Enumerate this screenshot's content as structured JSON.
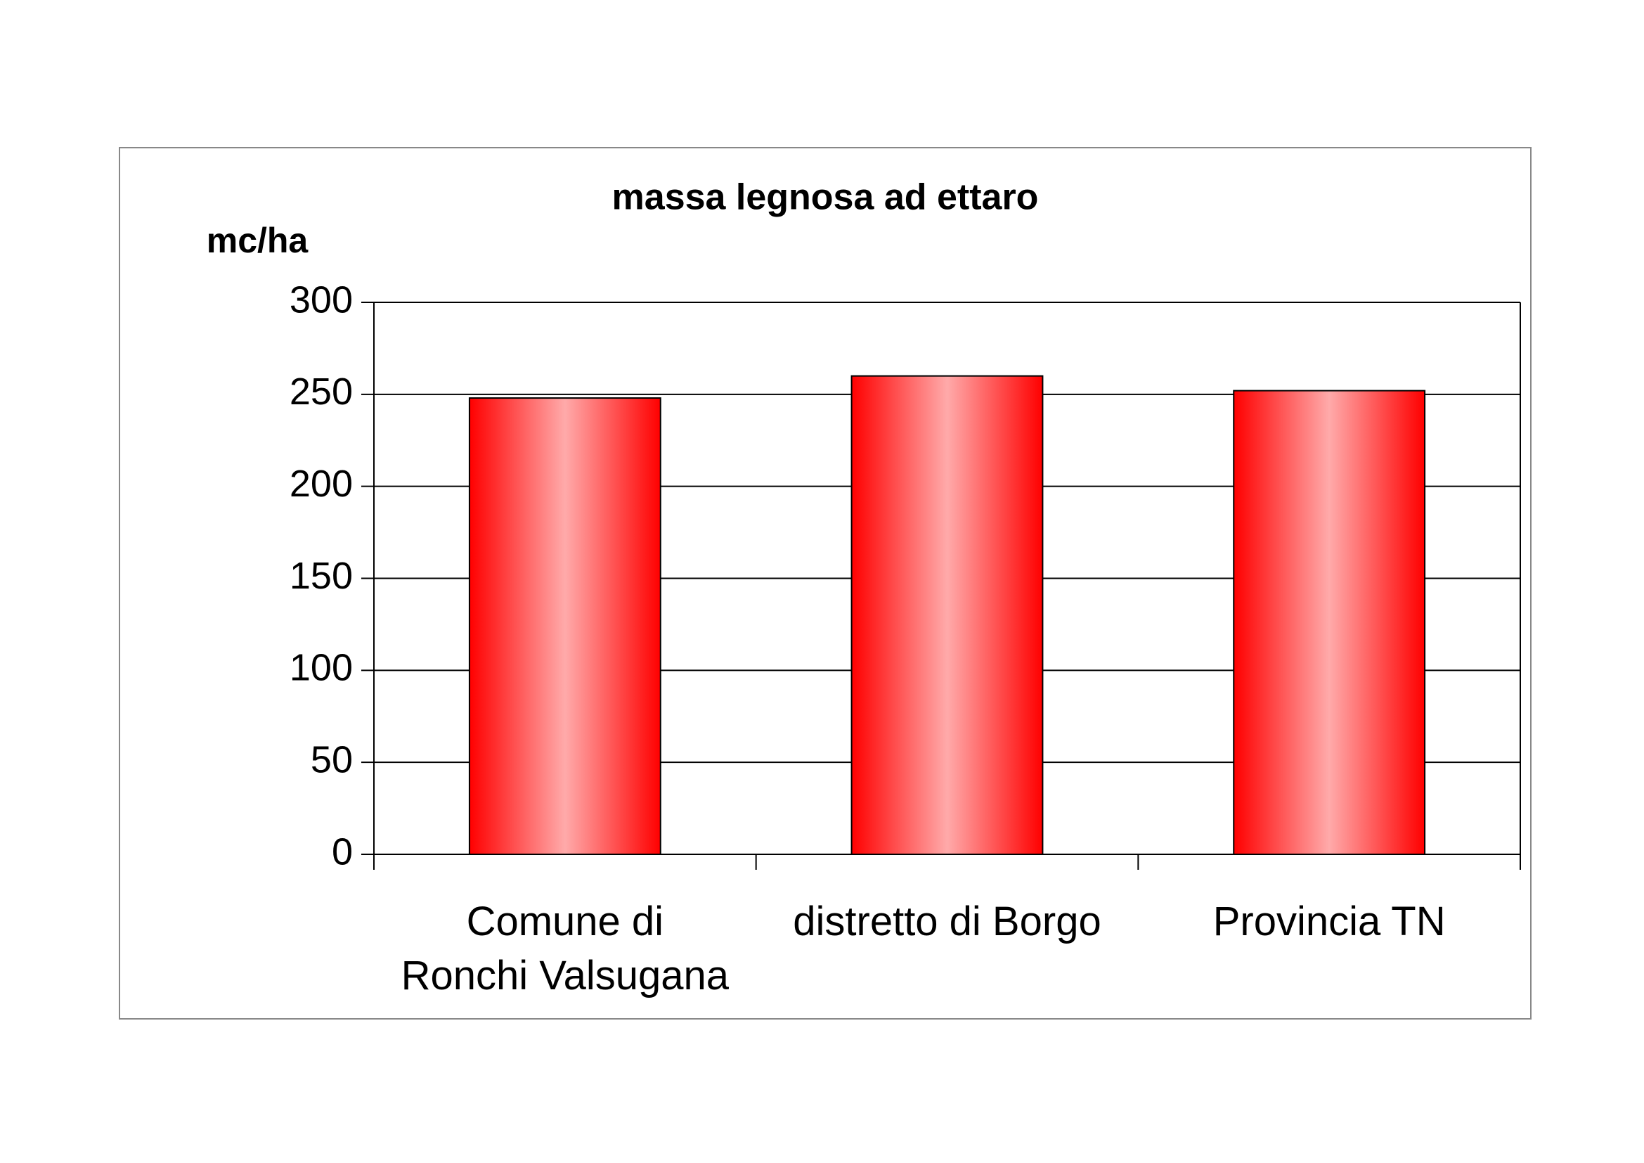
{
  "chart_data": {
    "type": "bar",
    "title": "massa legnosa ad ettaro",
    "y_label": "mc/ha",
    "categories": [
      "Comune di\nRonchi Valsugana",
      "distretto di Borgo",
      "Provincia TN"
    ],
    "values": [
      248,
      260,
      252
    ],
    "color": "#ff0000",
    "ylim": [
      0,
      300
    ],
    "yticks": [
      0,
      50,
      100,
      150,
      200,
      250,
      300
    ],
    "grid": true
  }
}
